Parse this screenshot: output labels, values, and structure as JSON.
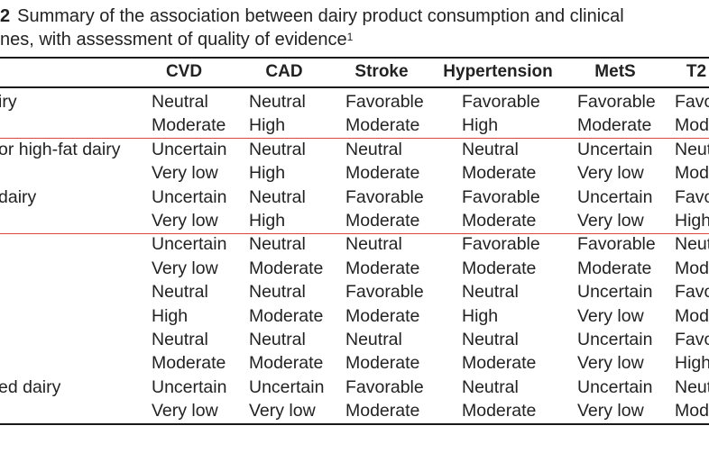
{
  "caption": {
    "number": "2",
    "line1": "Summary of the association between dairy product consumption and clinical",
    "line2": "nes, with assessment of quality of evidence",
    "footnote_marker": "1"
  },
  "table": {
    "columns": [
      "CVD",
      "CAD",
      "Stroke",
      "Hypertension",
      "MetS",
      "T2"
    ],
    "rows": [
      {
        "label": "iry",
        "association": [
          "Neutral",
          "Neutral",
          "Favorable",
          "Favorable",
          "Favorable",
          "Favo"
        ],
        "quality": [
          "Moderate",
          "High",
          "Moderate",
          "High",
          "Moderate",
          "Mod"
        ]
      },
      {
        "label": "or high-fat dairy",
        "association": [
          "Uncertain",
          "Neutral",
          "Neutral",
          "Neutral",
          "Uncertain",
          "Neut"
        ],
        "quality": [
          "Very low",
          "High",
          "Moderate",
          "Moderate",
          "Very low",
          "Mod"
        ]
      },
      {
        "label": "dairy",
        "association": [
          "Uncertain",
          "Neutral",
          "Favorable",
          "Favorable",
          "Uncertain",
          "Favo"
        ],
        "quality": [
          "Very low",
          "High",
          "Moderate",
          "Moderate",
          "Very low",
          "High"
        ]
      },
      {
        "label": "",
        "association": [
          "Uncertain",
          "Neutral",
          "Neutral",
          "Favorable",
          "Favorable",
          "Neut"
        ],
        "quality": [
          "Very low",
          "Moderate",
          "Moderate",
          "Moderate",
          "Moderate",
          "Mod"
        ]
      },
      {
        "label": "",
        "association": [
          "Neutral",
          "Neutral",
          "Favorable",
          "Neutral",
          "Uncertain",
          "Favo"
        ],
        "quality": [
          "High",
          "Moderate",
          "Moderate",
          "High",
          "Very low",
          "Mod"
        ]
      },
      {
        "label": "",
        "association": [
          "Neutral",
          "Neutral",
          "Neutral",
          "Neutral",
          "Uncertain",
          "Favo"
        ],
        "quality": [
          "Moderate",
          "Moderate",
          "Moderate",
          "Moderate",
          "Very low",
          "High"
        ]
      },
      {
        "label": "ed dairy",
        "association": [
          "Uncertain",
          "Uncertain",
          "Favorable",
          "Neutral",
          "Uncertain",
          "Neut"
        ],
        "quality": [
          "Very low",
          "Very low",
          "Moderate",
          "Moderate",
          "Very low",
          "Mod"
        ]
      }
    ]
  }
}
